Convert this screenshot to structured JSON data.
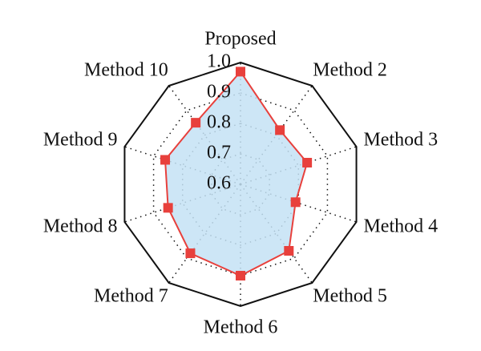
{
  "chart_data": {
    "type": "radar",
    "categories": [
      "Proposed",
      "Method 2",
      "Method 3",
      "Method 4",
      "Method 5",
      "Method 6",
      "Method 7",
      "Method 8",
      "Method 9",
      "Method 10"
    ],
    "values": [
      0.97,
      0.82,
      0.83,
      0.79,
      0.87,
      0.9,
      0.88,
      0.85,
      0.86,
      0.85
    ],
    "color": "#e8403c",
    "fill": "#c4e2f5",
    "rlim": [
      0.6,
      1.0
    ],
    "rticks": [
      0.6,
      0.7,
      0.8,
      0.9,
      {
        "value": 1.0,
        "label": "1.0"
      }
    ],
    "grid": true
  }
}
